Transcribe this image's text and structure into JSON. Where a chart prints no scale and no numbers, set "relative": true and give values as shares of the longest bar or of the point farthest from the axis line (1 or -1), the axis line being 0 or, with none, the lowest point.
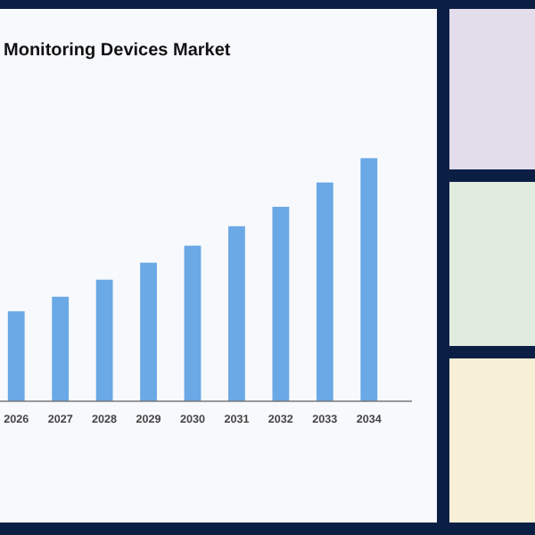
{
  "chart_data": {
    "type": "bar",
    "title": "Monitoring Devices Market",
    "relative": true,
    "color": "#6aa8e6",
    "categories": [
      "2026",
      "2027",
      "2028",
      "2029",
      "2030",
      "2031",
      "2032",
      "2033",
      "2034"
    ],
    "values": [
      0.37,
      0.43,
      0.5,
      0.57,
      0.64,
      0.72,
      0.8,
      0.9,
      1
    ]
  }
}
